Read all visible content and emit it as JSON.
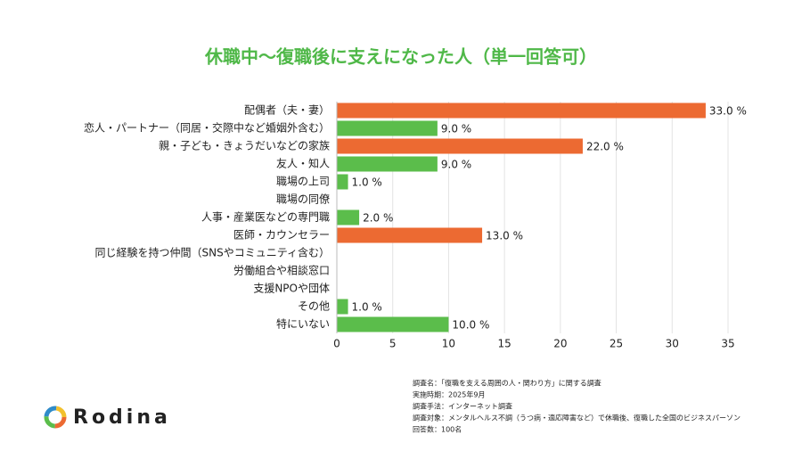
{
  "chart_data": {
    "type": "bar",
    "orientation": "horizontal",
    "title": "休職中〜復職後に支えになった人（単一回答可）",
    "categories": [
      "配偶者（夫・妻）",
      "恋人・パートナー（同居・交際中など婚姻外含む）",
      "親・子ども・きょうだいなどの家族",
      "友人・知人",
      "職場の上司",
      "職場の同僚",
      "人事・産業医などの専門職",
      "医師・カウンセラー",
      "同じ経験を持つ仲間（SNSやコミュニティ含む）",
      "労働組合や相談窓口",
      "支援NPOや団体",
      "その他",
      "特にいない"
    ],
    "values": [
      33,
      9,
      22,
      9,
      1,
      null,
      2,
      13,
      null,
      null,
      null,
      1,
      10
    ],
    "value_labels": [
      "33.0 %",
      "9.0 %",
      "22.0 %",
      "9.0 %",
      "1.0 %",
      null,
      "2.0 %",
      "13.0 %",
      null,
      null,
      null,
      "1.0 %",
      "10.0 %"
    ],
    "colors": [
      "#ec6a32",
      "#5bbd4b",
      "#ec6a32",
      "#5bbd4b",
      "#5bbd4b",
      "#5bbd4b",
      "#5bbd4b",
      "#ec6a32",
      "#5bbd4b",
      "#5bbd4b",
      "#5bbd4b",
      "#5bbd4b",
      "#5bbd4b"
    ],
    "xlim": [
      0,
      35
    ],
    "xticks": [
      0,
      5,
      10,
      15,
      20,
      25,
      30,
      35
    ],
    "grid": true,
    "notes": [
      "調査名：「復職を支える周囲の人・関わり方」に関する調査",
      "実施時期：2025年9月",
      "調査手法：インターネット調査",
      "調査対象：メンタルヘルス不調（うつ病・適応障害など）で休職後、復職した全国のビジネスパーソン",
      "回答数：100名"
    ]
  },
  "logo": "Rodina"
}
